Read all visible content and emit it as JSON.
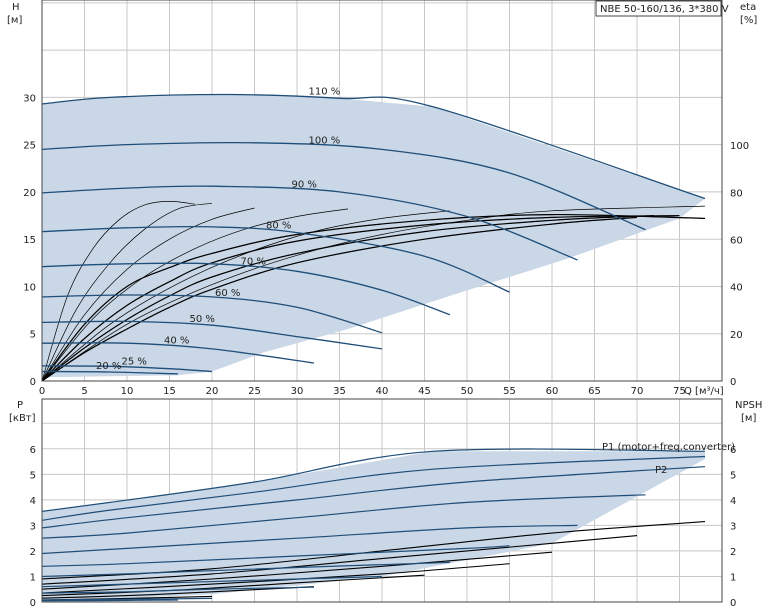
{
  "title": "NBE 50-160/136, 3*380 V",
  "colors": {
    "curve": "#1f4e79",
    "region": "#c9d7e6",
    "region_light": "#e6eff8",
    "grid": "#c8c8c8",
    "eff": "#000000"
  },
  "chart_data": [
    {
      "type": "line",
      "name": "head",
      "ylabel_left": "H",
      "ylabel_left_unit": "[м]",
      "ylabel_right": "eta",
      "ylabel_right_unit": "[%]",
      "xlabel": "Q [м³/ч]",
      "xlim": [
        0,
        80
      ],
      "ylim": [
        0,
        30
      ],
      "xticks": [
        "0",
        "5",
        "10",
        "15",
        "20",
        "25",
        "30",
        "35",
        "40",
        "45",
        "50",
        "55",
        "60",
        "65",
        "70",
        "75"
      ],
      "yticks_left": [
        "0",
        "5",
        "10",
        "15",
        "20",
        "25",
        "30"
      ],
      "yticks_right": [
        "0",
        "20",
        "40",
        "60",
        "80",
        "100"
      ],
      "series": [
        {
          "name": "110 %",
          "x": [
            0,
            8,
            22,
            35,
            46,
            78
          ],
          "y": [
            29.3,
            30.0,
            30.3,
            29.9,
            29.0,
            19.3
          ]
        },
        {
          "name": "100 %",
          "x": [
            0,
            10,
            25,
            40,
            55,
            71
          ],
          "y": [
            24.5,
            25.0,
            25.2,
            24.5,
            22.0,
            16.0
          ]
        },
        {
          "name": "90 %",
          "x": [
            0,
            10,
            20,
            35,
            50,
            63
          ],
          "y": [
            19.9,
            20.4,
            20.6,
            20.0,
            17.4,
            12.8
          ]
        },
        {
          "name": "80 %",
          "x": [
            0,
            10,
            20,
            30,
            45,
            55
          ],
          "y": [
            15.8,
            16.2,
            16.3,
            15.7,
            13.2,
            9.4
          ]
        },
        {
          "name": "70 %",
          "x": [
            0,
            10,
            20,
            30,
            40,
            48
          ],
          "y": [
            12.1,
            12.4,
            12.4,
            11.6,
            9.6,
            7.0
          ]
        },
        {
          "name": "60 %",
          "x": [
            0,
            10,
            20,
            30,
            40
          ],
          "y": [
            8.9,
            9.1,
            8.9,
            7.8,
            5.1
          ]
        },
        {
          "name": "50 %",
          "x": [
            0,
            10,
            20,
            30,
            40
          ],
          "y": [
            6.2,
            6.3,
            5.9,
            4.7,
            3.4
          ]
        },
        {
          "name": "40 %",
          "x": [
            0,
            10,
            20,
            32
          ],
          "y": [
            4.0,
            4.0,
            3.4,
            1.9
          ]
        },
        {
          "name": "25 %",
          "x": [
            0,
            8,
            15,
            20
          ],
          "y": [
            1.6,
            1.55,
            1.3,
            1.0
          ]
        },
        {
          "name": "20 %",
          "x": [
            0,
            8,
            16
          ],
          "y": [
            1.0,
            0.95,
            0.75
          ]
        }
      ],
      "efficiency_curves": [
        {
          "x": [
            0,
            5,
            10,
            15,
            20,
            30,
            45,
            60,
            78
          ],
          "y": [
            0,
            6,
            10,
            12,
            13.5,
            15.5,
            17,
            17.6,
            17.2
          ]
        },
        {
          "x": [
            0,
            5,
            10,
            15,
            20,
            30,
            45,
            60,
            75
          ],
          "y": [
            0,
            4.5,
            8,
            10.5,
            12.5,
            14.8,
            16.5,
            17.3,
            17.5
          ]
        },
        {
          "x": [
            0,
            5,
            10,
            15,
            20,
            30,
            45,
            60,
            72
          ],
          "y": [
            0,
            3.5,
            6.5,
            9,
            11,
            13.5,
            15.8,
            17,
            17.5
          ]
        },
        {
          "x": [
            0,
            5,
            10,
            15,
            20,
            30,
            45,
            60,
            70
          ],
          "y": [
            0,
            3,
            5.5,
            7.8,
            9.7,
            12.5,
            15,
            16.6,
            17.3
          ]
        },
        {
          "x": [
            0,
            3,
            6,
            9,
            12,
            15,
            18
          ],
          "y": [
            0,
            9,
            14,
            17,
            18.6,
            19,
            18.7
          ]
        },
        {
          "x": [
            0,
            4,
            8,
            12,
            16,
            20
          ],
          "y": [
            0,
            7.5,
            12.5,
            16,
            18.2,
            18.8
          ]
        },
        {
          "x": [
            0,
            5,
            10,
            15,
            20,
            25
          ],
          "y": [
            0,
            7,
            11.8,
            15,
            17.1,
            18.3
          ]
        },
        {
          "x": [
            0,
            6,
            12,
            18,
            24,
            30,
            36
          ],
          "y": [
            0,
            6.6,
            11,
            14,
            16.1,
            17.4,
            18.2
          ]
        },
        {
          "x": [
            0,
            8,
            16,
            24,
            32,
            40,
            48
          ],
          "y": [
            0,
            6,
            10.3,
            13.5,
            15.8,
            17.2,
            18
          ]
        },
        {
          "x": [
            0,
            10,
            20,
            30,
            40,
            50,
            60,
            78
          ],
          "y": [
            0,
            6,
            10.2,
            13.3,
            15.5,
            17,
            18,
            18.5
          ]
        }
      ]
    },
    {
      "type": "line",
      "name": "power",
      "ylabel_left": "P",
      "ylabel_left_unit": "[кВт]",
      "ylabel_right": "NPSH",
      "ylabel_right_unit": "[м]",
      "xlim": [
        0,
        80
      ],
      "ylim": [
        0,
        6.8
      ],
      "yticks_left": [
        "0",
        "1",
        "2",
        "3",
        "4",
        "5",
        "6"
      ],
      "yticks_right": [
        "0",
        "1",
        "2",
        "3",
        "4",
        "5",
        "6"
      ],
      "labels": {
        "p1": "P1 (motor+freq.converter)",
        "p2": "P2"
      },
      "series": [
        {
          "name": "P1 (motor+freq.converter)",
          "x": [
            0,
            8,
            25,
            46,
            78
          ],
          "y": [
            3.55,
            3.9,
            4.7,
            5.9,
            5.9
          ]
        },
        {
          "name": "P2",
          "x": [
            0,
            8,
            25,
            46,
            78
          ],
          "y": [
            3.2,
            3.6,
            4.3,
            5.2,
            5.7
          ]
        },
        {
          "x": [
            0,
            10,
            30,
            50,
            78
          ],
          "y": [
            2.9,
            3.3,
            4.0,
            4.7,
            5.3
          ]
        },
        {
          "x": [
            0,
            10,
            30,
            50,
            71
          ],
          "y": [
            2.5,
            2.7,
            3.3,
            3.9,
            4.2
          ]
        },
        {
          "x": [
            0,
            10,
            30,
            50,
            63
          ],
          "y": [
            1.9,
            2.1,
            2.5,
            2.9,
            3.0
          ]
        },
        {
          "x": [
            0,
            10,
            30,
            50,
            55
          ],
          "y": [
            1.4,
            1.5,
            1.8,
            2.1,
            2.2
          ]
        },
        {
          "x": [
            0,
            10,
            30,
            48
          ],
          "y": [
            1.0,
            1.1,
            1.35,
            1.55
          ]
        },
        {
          "x": [
            0,
            10,
            30,
            40
          ],
          "y": [
            0.6,
            0.7,
            0.9,
            1.0
          ]
        },
        {
          "x": [
            0,
            10,
            20,
            32
          ],
          "y": [
            0.35,
            0.4,
            0.5,
            0.58
          ]
        },
        {
          "x": [
            0,
            8,
            20
          ],
          "y": [
            0.08,
            0.1,
            0.14
          ]
        },
        {
          "x": [
            0,
            8,
            16
          ],
          "y": [
            0.05,
            0.06,
            0.08
          ]
        }
      ],
      "npsh_curves": [
        {
          "x": [
            0,
            20,
            40,
            60,
            78
          ],
          "y": [
            0.9,
            1.3,
            2.0,
            2.7,
            3.15
          ]
        },
        {
          "x": [
            0,
            20,
            40,
            60,
            70
          ],
          "y": [
            0.7,
            1.1,
            1.7,
            2.3,
            2.6
          ]
        },
        {
          "x": [
            0,
            20,
            40,
            60
          ],
          "y": [
            0.5,
            0.9,
            1.4,
            1.95
          ]
        },
        {
          "x": [
            0,
            20,
            40,
            55
          ],
          "y": [
            0.35,
            0.7,
            1.1,
            1.5
          ]
        },
        {
          "x": [
            0,
            15,
            30,
            45
          ],
          "y": [
            0.25,
            0.45,
            0.75,
            1.05
          ]
        },
        {
          "x": [
            0,
            10,
            20,
            32
          ],
          "y": [
            0.15,
            0.25,
            0.4,
            0.6
          ]
        },
        {
          "x": [
            0,
            10,
            20
          ],
          "y": [
            0.08,
            0.14,
            0.22
          ]
        }
      ]
    }
  ]
}
